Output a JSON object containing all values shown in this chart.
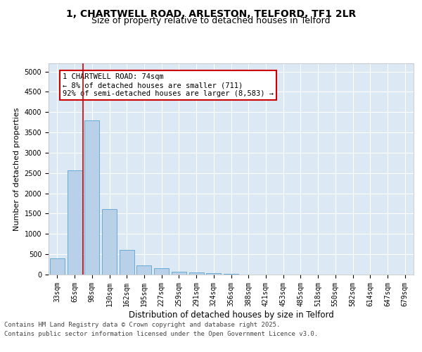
{
  "title_line1": "1, CHARTWELL ROAD, ARLESTON, TELFORD, TF1 2LR",
  "title_line2": "Size of property relative to detached houses in Telford",
  "xlabel": "Distribution of detached houses by size in Telford",
  "ylabel": "Number of detached properties",
  "categories": [
    "33sqm",
    "65sqm",
    "98sqm",
    "130sqm",
    "162sqm",
    "195sqm",
    "227sqm",
    "259sqm",
    "291sqm",
    "324sqm",
    "356sqm",
    "388sqm",
    "421sqm",
    "453sqm",
    "485sqm",
    "518sqm",
    "550sqm",
    "582sqm",
    "614sqm",
    "647sqm",
    "679sqm"
  ],
  "values": [
    400,
    2560,
    3800,
    1620,
    610,
    220,
    155,
    75,
    50,
    30,
    10,
    5,
    3,
    2,
    1,
    1,
    1,
    0,
    0,
    0,
    0
  ],
  "bar_color": "#b8d0e8",
  "bar_edge_color": "#6aaad4",
  "vline_x": 1.5,
  "vline_color": "#cc0000",
  "annotation_text": "1 CHARTWELL ROAD: 74sqm\n← 8% of detached houses are smaller (711)\n92% of semi-detached houses are larger (8,583) →",
  "annotation_box_facecolor": "#ffffff",
  "annotation_box_edgecolor": "#cc0000",
  "ylim": [
    0,
    5200
  ],
  "yticks": [
    0,
    500,
    1000,
    1500,
    2000,
    2500,
    3000,
    3500,
    4000,
    4500,
    5000
  ],
  "plot_background": "#dce9f5",
  "footer_line1": "Contains HM Land Registry data © Crown copyright and database right 2025.",
  "footer_line2": "Contains public sector information licensed under the Open Government Licence v3.0.",
  "title_fontsize": 10,
  "subtitle_fontsize": 9,
  "ylabel_fontsize": 8,
  "xlabel_fontsize": 8.5,
  "tick_fontsize": 7,
  "annotation_fontsize": 7.5,
  "footer_fontsize": 6.5
}
